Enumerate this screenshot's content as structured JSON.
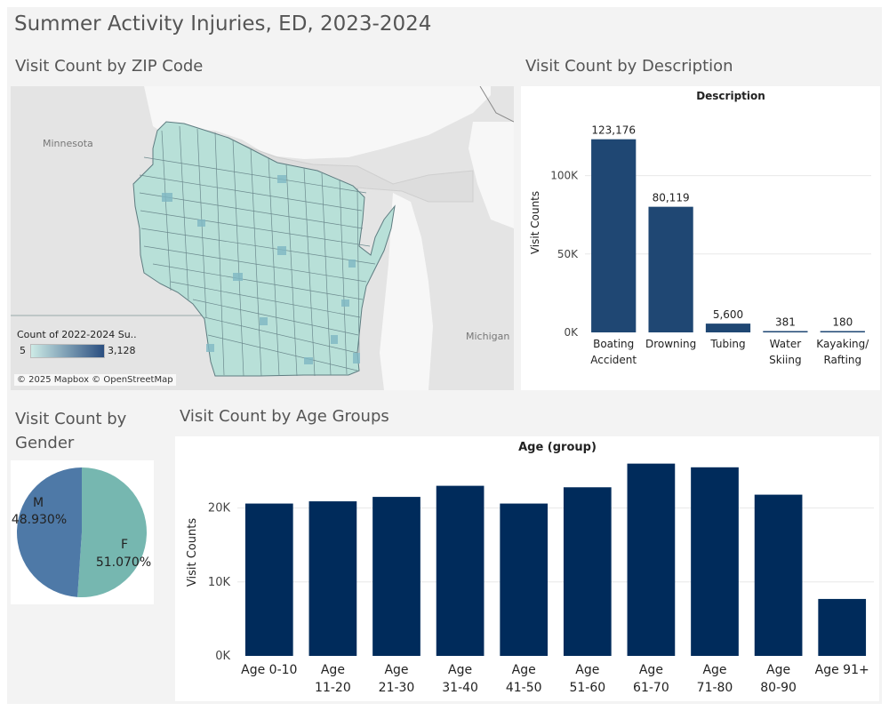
{
  "dashboard": {
    "title": "Summer Activity Injuries, ED, 2023-2024"
  },
  "map": {
    "title": "Visit Count by ZIP Code",
    "legend_title": "Count of 2022-2024 Su..",
    "legend_min": "5",
    "legend_max": "3,128",
    "label_minnesota": "Minnesota",
    "label_michigan": "Michigan",
    "attribution": "© 2025 Mapbox © OpenStreetMap",
    "ramp_start": "#cdebe6",
    "ramp_end": "#2a4e80"
  },
  "description_chart_title": "Visit Count by Description",
  "gender_chart_title": "Visit Count by Gender",
  "age_chart_title": "Visit Count by Age Groups",
  "chart_data": [
    {
      "id": "description",
      "type": "bar",
      "title": "Description",
      "ylabel": "Visit Counts",
      "xlabel": "",
      "categories": [
        [
          "Boating",
          "Accident"
        ],
        [
          "Drowning"
        ],
        [
          "Tubing"
        ],
        [
          "Water",
          "Skiing"
        ],
        [
          "Kayaking/",
          "Rafting"
        ]
      ],
      "values": [
        123176,
        80119,
        5600,
        381,
        180
      ],
      "value_labels": [
        "123,176",
        "80,119",
        "5,600",
        "381",
        "180"
      ],
      "yticks": [
        0,
        50000,
        100000
      ],
      "ytick_labels": [
        "0K",
        "50K",
        "100K"
      ],
      "ylim": [
        0,
        140000
      ],
      "color": "#1f4773"
    },
    {
      "id": "gender",
      "type": "pie",
      "title": "",
      "labels": [
        "F",
        "M"
      ],
      "values": [
        51.07,
        48.93
      ],
      "value_labels": [
        "51.070%",
        "48.930%"
      ],
      "colors": [
        "#76b7b0",
        "#4e79a7"
      ]
    },
    {
      "id": "age",
      "type": "bar",
      "title": "Age (group)",
      "ylabel": "Visit Counts",
      "xlabel": "",
      "categories": [
        [
          "Age 0-10"
        ],
        [
          "Age",
          "11-20"
        ],
        [
          "Age",
          "21-30"
        ],
        [
          "Age",
          "31-40"
        ],
        [
          "Age",
          "41-50"
        ],
        [
          "Age",
          "51-60"
        ],
        [
          "Age",
          "61-70"
        ],
        [
          "Age",
          "71-80"
        ],
        [
          "Age",
          "80-90"
        ],
        [
          "Age 91+"
        ]
      ],
      "values": [
        20600,
        20900,
        21500,
        23000,
        20600,
        22800,
        26000,
        25500,
        21800,
        7700
      ],
      "yticks": [
        0,
        10000,
        20000
      ],
      "ytick_labels": [
        "0K",
        "10K",
        "20K"
      ],
      "ylim": [
        0,
        28000
      ],
      "color": "#002b5b"
    }
  ]
}
